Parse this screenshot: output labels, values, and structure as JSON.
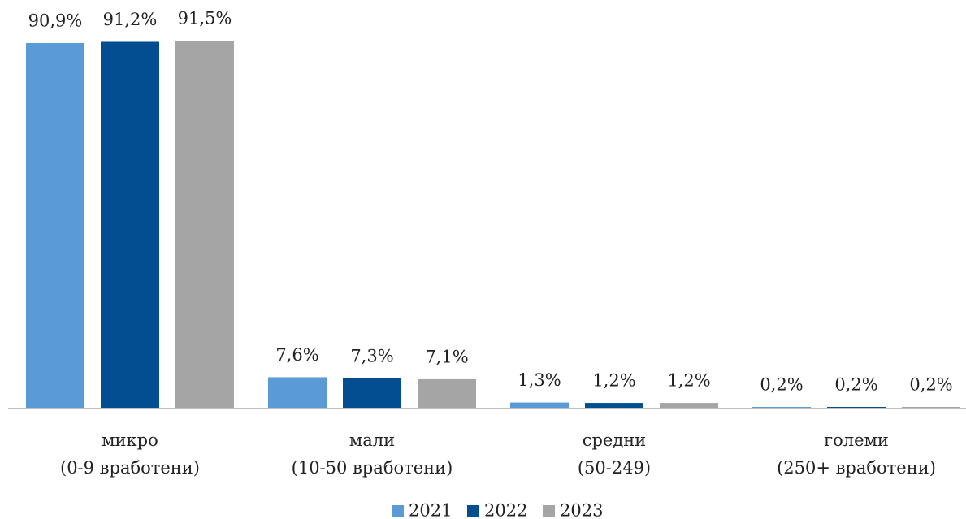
{
  "chart_data": {
    "type": "bar",
    "categories": [
      "микро\n(0-9 вработени)",
      "мали\n(10-50 вработени)",
      "средни\n(50-249)",
      "големи\n(250+ вработени)"
    ],
    "series": [
      {
        "name": "2021",
        "color": "#5b9bd5",
        "values": [
          90.9,
          7.6,
          1.3,
          0.2
        ],
        "value_labels": [
          "90,9%",
          "7,6%",
          "1,3%",
          "0,2%"
        ]
      },
      {
        "name": "2022",
        "color": "#034d91",
        "values": [
          91.2,
          7.3,
          1.2,
          0.2
        ],
        "value_labels": [
          "91,2%",
          "7,3%",
          "1,2%",
          "0,2%"
        ]
      },
      {
        "name": "2023",
        "color": "#a5a5a5",
        "values": [
          91.5,
          7.1,
          1.2,
          0.2
        ],
        "value_labels": [
          "91,5%",
          "7,1%",
          "1,2%",
          "0,2%"
        ]
      }
    ],
    "legend": "bottom"
  }
}
